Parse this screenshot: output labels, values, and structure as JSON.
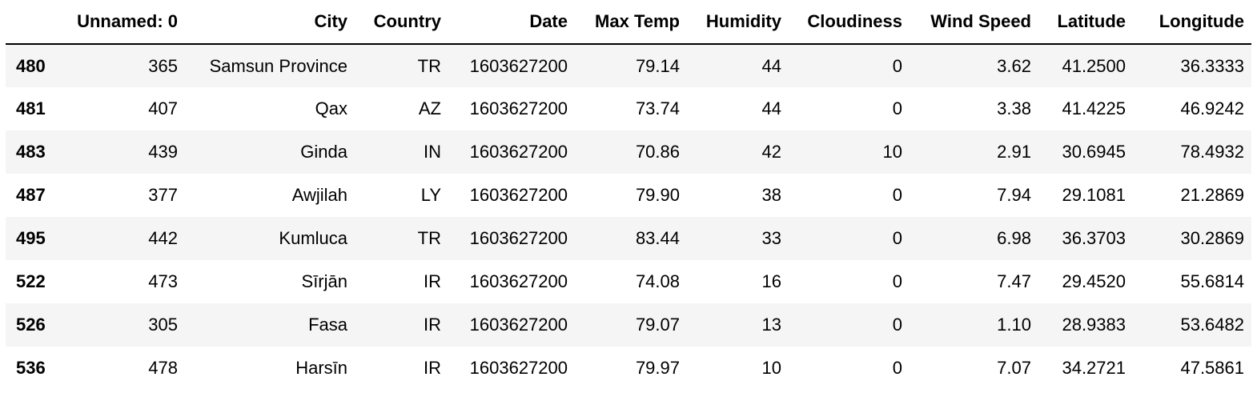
{
  "table": {
    "columns": [
      "",
      "Unnamed: 0",
      "City",
      "Country",
      "Date",
      "Max Temp",
      "Humidity",
      "Cloudiness",
      "Wind Speed",
      "Latitude",
      "Longitude"
    ],
    "rows": [
      {
        "index": "480",
        "cells": [
          "365",
          "Samsun Province",
          "TR",
          "1603627200",
          "79.14",
          "44",
          "0",
          "3.62",
          "41.2500",
          "36.3333"
        ]
      },
      {
        "index": "481",
        "cells": [
          "407",
          "Qax",
          "AZ",
          "1603627200",
          "73.74",
          "44",
          "0",
          "3.38",
          "41.4225",
          "46.9242"
        ]
      },
      {
        "index": "483",
        "cells": [
          "439",
          "Ginda",
          "IN",
          "1603627200",
          "70.86",
          "42",
          "10",
          "2.91",
          "30.6945",
          "78.4932"
        ]
      },
      {
        "index": "487",
        "cells": [
          "377",
          "Awjilah",
          "LY",
          "1603627200",
          "79.90",
          "38",
          "0",
          "7.94",
          "29.1081",
          "21.2869"
        ]
      },
      {
        "index": "495",
        "cells": [
          "442",
          "Kumluca",
          "TR",
          "1603627200",
          "83.44",
          "33",
          "0",
          "6.98",
          "36.3703",
          "30.2869"
        ]
      },
      {
        "index": "522",
        "cells": [
          "473",
          "Sīrjān",
          "IR",
          "1603627200",
          "74.08",
          "16",
          "0",
          "7.47",
          "29.4520",
          "55.6814"
        ]
      },
      {
        "index": "526",
        "cells": [
          "305",
          "Fasa",
          "IR",
          "1603627200",
          "79.07",
          "13",
          "0",
          "1.10",
          "28.9383",
          "53.6482"
        ]
      },
      {
        "index": "536",
        "cells": [
          "478",
          "Harsīn",
          "IR",
          "1603627200",
          "79.97",
          "10",
          "0",
          "7.07",
          "34.2721",
          "47.5861"
        ]
      }
    ]
  },
  "colors": {
    "stripe": "#f5f5f5",
    "background": "#ffffff",
    "text": "#000000"
  }
}
